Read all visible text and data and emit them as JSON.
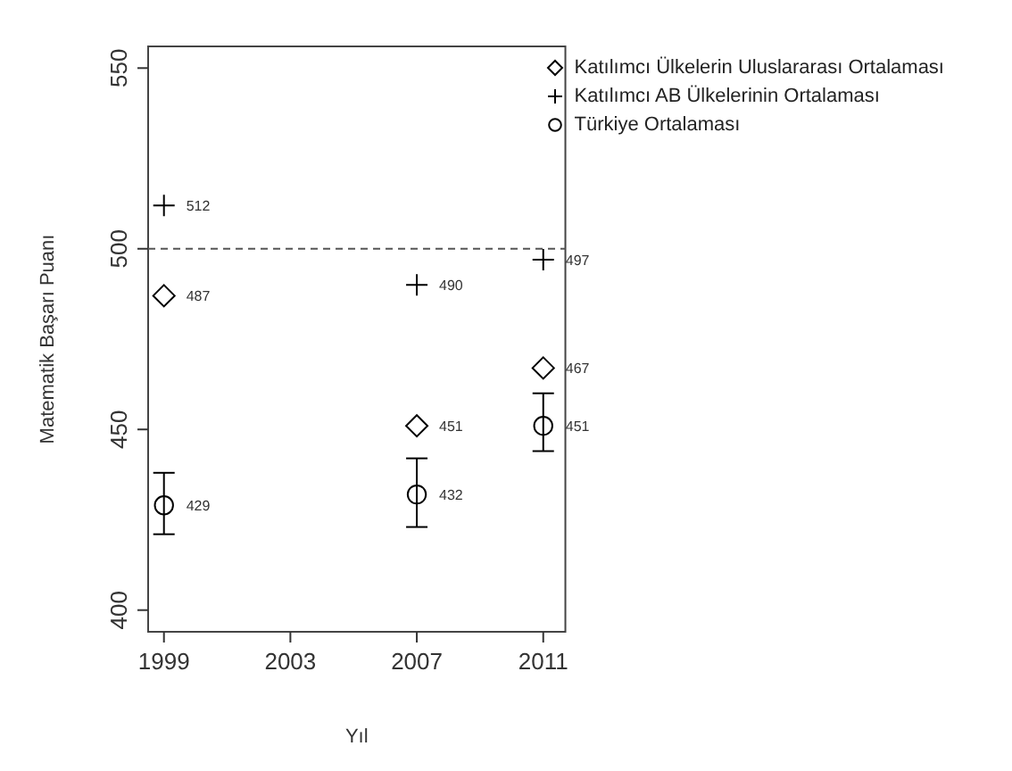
{
  "chart_data": {
    "type": "scatter",
    "xlabel": "Yıl",
    "ylabel": "Matematik Başarı Puanı",
    "x": [
      1999,
      2007,
      2011
    ],
    "series": [
      {
        "name": "Katılımcı Ülkelerin Uluslararası Ortalaması",
        "color": "#000000",
        "marker": "diamond",
        "values": [
          487,
          451,
          467
        ]
      },
      {
        "name": "Katılımcı AB Ülkelerinin Ortalaması",
        "color": "#000000",
        "marker": "cross",
        "values": [
          512,
          490,
          497
        ]
      },
      {
        "name": "Türkiye Ortalaması",
        "color": "#000000",
        "marker": "circle",
        "values": [
          429,
          432,
          451
        ],
        "errors": [
          [
            421,
            438
          ],
          [
            423,
            442
          ],
          [
            444,
            460
          ]
        ]
      }
    ],
    "xlim": [
      1998.5,
      2011.7
    ],
    "xticks": [
      1999,
      2003,
      2007,
      2011
    ],
    "ylim": [
      394,
      556
    ],
    "yticks": [
      400,
      450,
      500,
      550
    ],
    "ref_lines": [
      {
        "axis": "y",
        "value": 500,
        "line_style": "dashed",
        "color": "#555555"
      }
    ],
    "data_labels": true,
    "legend": "top right",
    "grid": false
  }
}
